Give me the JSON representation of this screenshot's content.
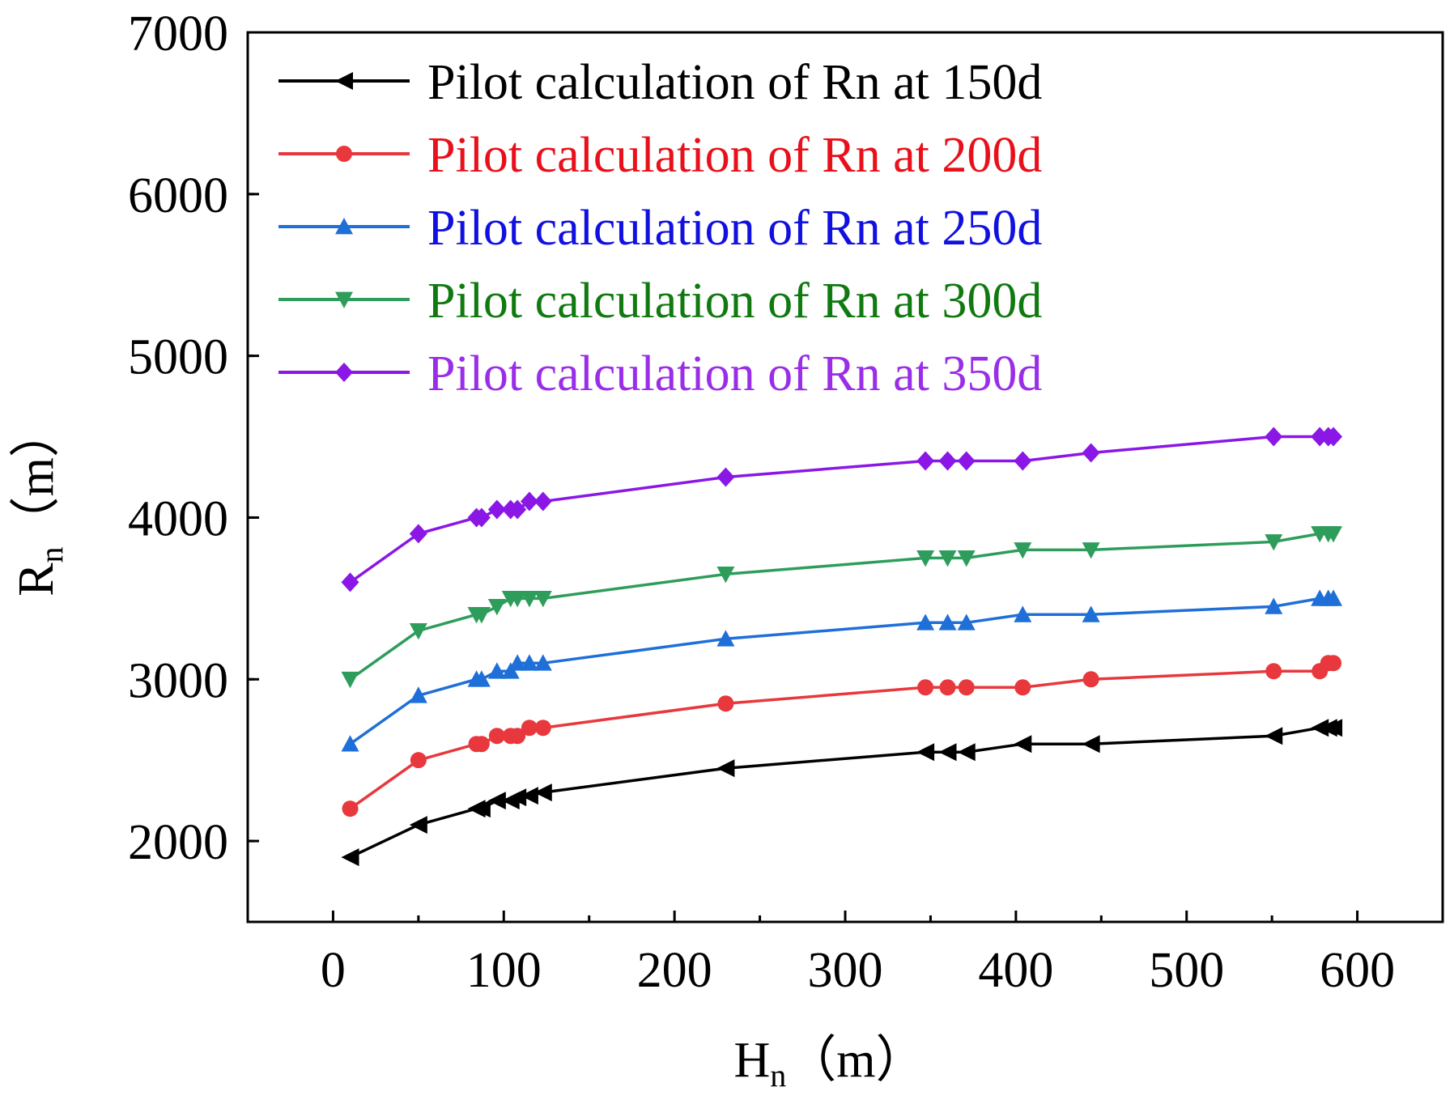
{
  "chart_data": {
    "type": "line",
    "xlabel": "H",
    "xlabel_sub": "n",
    "xlabel_unit": "（m）",
    "ylabel": "R",
    "ylabel_sub": "n",
    "ylabel_unit": "（m）",
    "xlim": [
      -50,
      650
    ],
    "ylim": [
      1500,
      7000
    ],
    "x_ticks": [
      0,
      100,
      200,
      300,
      400,
      500,
      600
    ],
    "x_tick_labels": [
      "0",
      "100",
      "200",
      "300",
      "400",
      "500",
      "600"
    ],
    "y_ticks": [
      2000,
      3000,
      4000,
      5000,
      6000,
      7000
    ],
    "y_tick_labels": [
      "2000",
      "3000",
      "4000",
      "5000",
      "6000",
      "7000"
    ],
    "legend_position": "top-left",
    "grid": false,
    "x": [
      10,
      50,
      84,
      87,
      96,
      104,
      108,
      115,
      123,
      230,
      347,
      360,
      371,
      404,
      444,
      551,
      578,
      583,
      586
    ],
    "series": [
      {
        "name": "Pilot calculation of Rn at 150d",
        "color": "#000000",
        "marker": "triangle-left",
        "values": [
          1900,
          2100,
          2200,
          2200,
          2250,
          2250,
          2270,
          2280,
          2300,
          2450,
          2550,
          2550,
          2550,
          2600,
          2600,
          2650,
          2700,
          2700,
          2700
        ]
      },
      {
        "name": "Pilot calculation of Rn at 200d",
        "color": "#e8383d",
        "marker": "circle",
        "values": [
          2200,
          2500,
          2600,
          2600,
          2650,
          2650,
          2650,
          2700,
          2700,
          2850,
          2950,
          2950,
          2950,
          2950,
          3000,
          3050,
          3050,
          3100,
          3100
        ]
      },
      {
        "name": "Pilot calculation of Rn at 250d",
        "color": "#1f6fd8",
        "marker": "triangle-up",
        "values": [
          2600,
          2900,
          3000,
          3000,
          3050,
          3050,
          3100,
          3100,
          3100,
          3250,
          3350,
          3350,
          3350,
          3400,
          3400,
          3450,
          3500,
          3500,
          3500
        ]
      },
      {
        "name": "Pilot calculation of Rn at 300d",
        "color": "#2e9d5b",
        "marker": "triangle-down",
        "values": [
          3000,
          3300,
          3400,
          3400,
          3450,
          3500,
          3500,
          3500,
          3500,
          3650,
          3750,
          3750,
          3750,
          3800,
          3800,
          3850,
          3900,
          3900,
          3900
        ]
      },
      {
        "name": "Pilot calculation of Rn at 350d",
        "color": "#8a17e6",
        "marker": "diamond",
        "values": [
          3600,
          3900,
          4000,
          4000,
          4050,
          4050,
          4050,
          4100,
          4100,
          4250,
          4350,
          4350,
          4350,
          4350,
          4400,
          4500,
          4500,
          4500,
          4500
        ]
      }
    ],
    "legend_text_colors": [
      "#000000",
      "#e8101a",
      "#1010e0",
      "#107a10",
      "#9a2ee8"
    ]
  }
}
